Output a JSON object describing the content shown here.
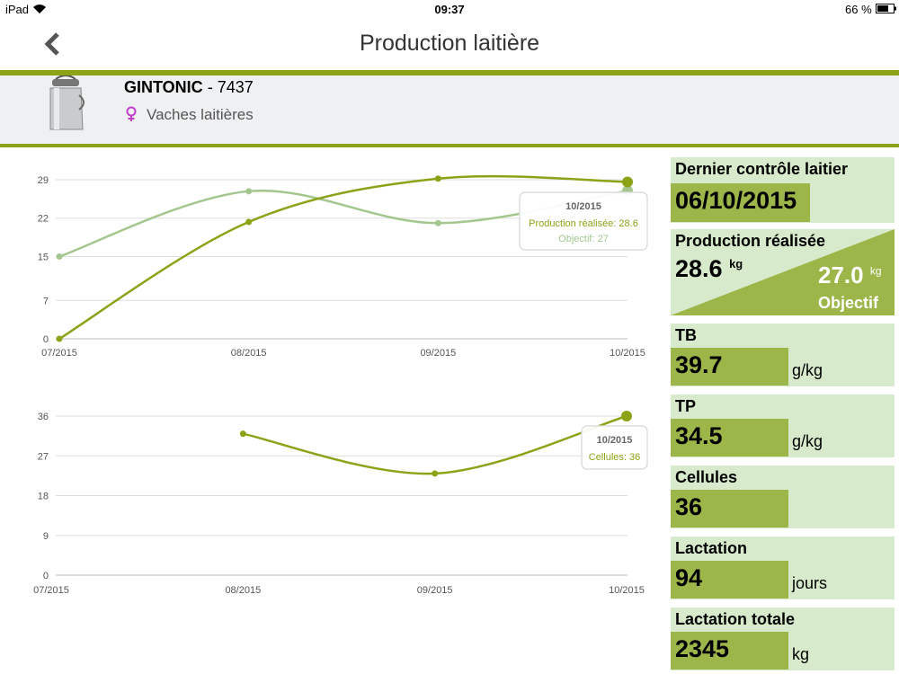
{
  "status_bar": {
    "device": "iPad",
    "time": "09:37",
    "battery": "66 %"
  },
  "header": {
    "title": "Production laitière"
  },
  "animal": {
    "name": "GINTONIC",
    "separator": "-",
    "number": "7437",
    "category": "Vaches laitières"
  },
  "charts": [
    {
      "type": "line",
      "categories": [
        "07/2015",
        "08/2015",
        "09/2015",
        "10/2015"
      ],
      "series": [
        {
          "name": "Production réalisée",
          "color": "#8ca317",
          "values": [
            0,
            21.3,
            29.2,
            28.6
          ]
        },
        {
          "name": "Objectif",
          "color": "#a3c78f",
          "values": [
            15,
            26.9,
            21.1,
            27
          ]
        }
      ],
      "ylim": [
        0,
        29
      ],
      "yticks": [
        0,
        7,
        15,
        22,
        29
      ],
      "grid": true,
      "tooltip": {
        "title": "10/2015",
        "lines": [
          "Production réalisée: 28.6",
          "Objectif: 27"
        ]
      }
    },
    {
      "type": "line",
      "categories": [
        "07/2015",
        "08/2015",
        "09/2015",
        "10/2015"
      ],
      "series": [
        {
          "name": "Cellules",
          "color": "#8ca317",
          "values": [
            null,
            32,
            23,
            36
          ]
        }
      ],
      "ylim": [
        0,
        36
      ],
      "yticks": [
        0,
        9,
        18,
        27,
        36
      ],
      "grid": true,
      "tooltip": {
        "title": "10/2015",
        "lines": [
          "Cellules: 36"
        ]
      }
    }
  ],
  "cards": [
    {
      "label": "Dernier contrôle laitier",
      "value": "06/10/2015"
    },
    {
      "label": "Production réalisée",
      "value": 28.6,
      "unit": "kg",
      "objective": "27.0",
      "objective_unit": "kg",
      "objective_label": "Objectif"
    },
    {
      "label": "TB",
      "value": 39.7,
      "unit": "g/kg"
    },
    {
      "label": "TP",
      "value": 34.5,
      "unit": "g/kg"
    },
    {
      "label": "Cellules",
      "value": 36
    },
    {
      "label": "Lactation",
      "value": 94,
      "unit": "jours"
    },
    {
      "label": "Lactation totale",
      "value": 2345,
      "unit": "kg"
    }
  ]
}
